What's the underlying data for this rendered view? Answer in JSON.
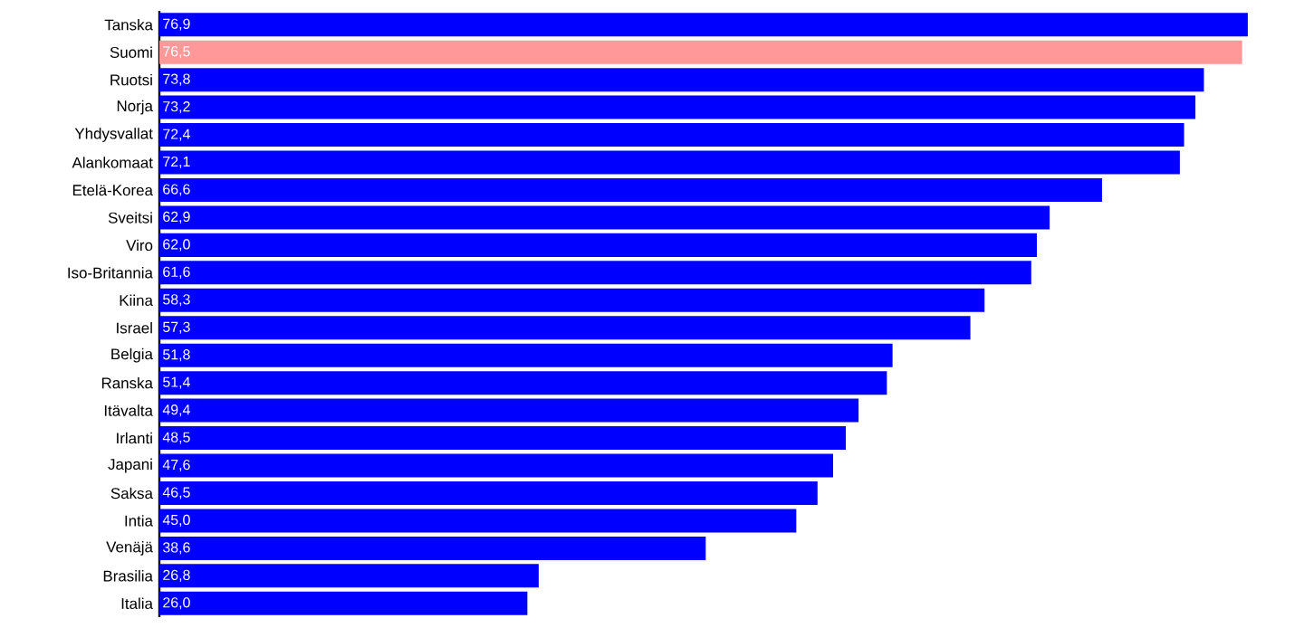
{
  "chart_data": {
    "type": "bar",
    "orientation": "horizontal",
    "categories": [
      "Tanska",
      "Suomi",
      "Ruotsi",
      "Norja",
      "Yhdysvallat",
      "Alankomaat",
      "Etelä-Korea",
      "Sveitsi",
      "Viro",
      "Iso-Britannia",
      "Kiina",
      "Israel",
      "Belgia",
      "Ranska",
      "Itävalta",
      "Irlanti",
      "Japani",
      "Saksa",
      "Intia",
      "Venäjä",
      "Brasilia",
      "Italia"
    ],
    "values": [
      76.9,
      76.5,
      73.8,
      73.2,
      72.4,
      72.1,
      66.6,
      62.9,
      62.0,
      61.6,
      58.3,
      57.3,
      51.8,
      51.4,
      49.4,
      48.5,
      47.6,
      46.5,
      45.0,
      38.6,
      26.8,
      26.0
    ],
    "value_labels": [
      "76,9",
      "76,5",
      "73,8",
      "73,2",
      "72,4",
      "72,1",
      "66,6",
      "62,9",
      "62,0",
      "61,6",
      "58,3",
      "57,3",
      "51,8",
      "51,4",
      "49,4",
      "48,5",
      "47,6",
      "46,5",
      "45,0",
      "38,6",
      "26,8",
      "26,0"
    ],
    "colors": [
      "#0000ff",
      "#ff9999",
      "#0000ff",
      "#0000ff",
      "#0000ff",
      "#0000ff",
      "#0000ff",
      "#0000ff",
      "#0000ff",
      "#0000ff",
      "#0000ff",
      "#0000ff",
      "#0000ff",
      "#0000ff",
      "#0000ff",
      "#0000ff",
      "#0000ff",
      "#0000ff",
      "#0000ff",
      "#0000ff",
      "#0000ff",
      "#0000ff"
    ],
    "tick_labels": "y"
  }
}
